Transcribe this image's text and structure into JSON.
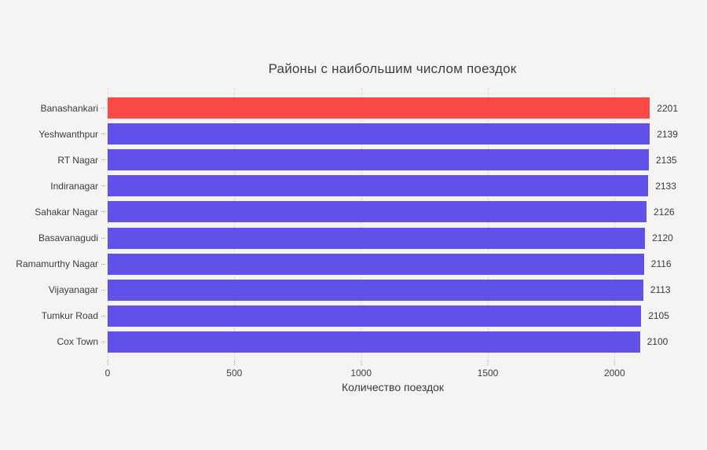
{
  "title": "Районы с наибольшим числом поездок",
  "colors": {
    "background": "#f5f4f2",
    "bar": "#5a4be8",
    "highlight_bar": "#f8423e",
    "grid": "#d9d9dc",
    "text": "#3c3c3c"
  },
  "chart_data": {
    "type": "bar",
    "orientation": "horizontal",
    "title": "Районы с наибольшим числом поездок",
    "xlabel": "Количество поездок",
    "ylabel": "",
    "categories": [
      "Banashankari",
      "Yeshwanthpur",
      "RT Nagar",
      "Indiranagar",
      "Sahakar Nagar",
      "Basavanagudi",
      "Ramamurthy Nagar",
      "Vijayanagar",
      "Tumkur Road",
      "Cox Town"
    ],
    "values": [
      2201,
      2139,
      2135,
      2133,
      2126,
      2120,
      2116,
      2113,
      2105,
      2100
    ],
    "value_labels": [
      "2201",
      "2139",
      "2135",
      "2133",
      "2126",
      "2120",
      "2116",
      "2113",
      "2105",
      "2100"
    ],
    "highlight_index": 0,
    "bar_color": "#5a4be8",
    "highlight_color": "#f8423e",
    "xlim": [
      0,
      2250
    ],
    "xticks": [
      0,
      500,
      1000,
      1500,
      2000
    ],
    "grid": true,
    "grid_style": "dashed-vertical",
    "legend": "none"
  }
}
